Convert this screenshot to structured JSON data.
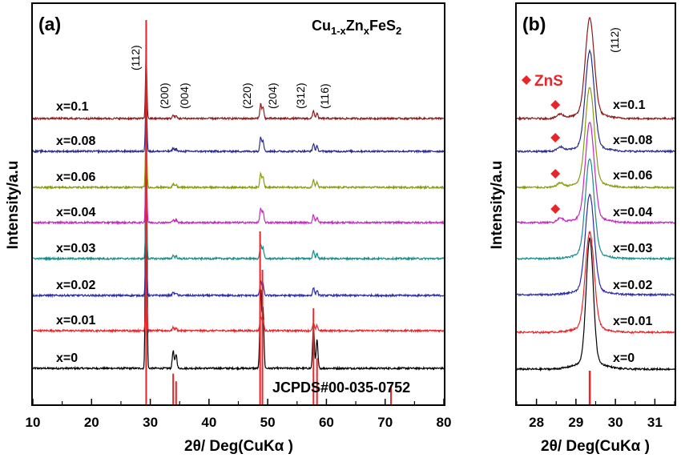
{
  "chart_data": [
    {
      "type": "line",
      "panel_label": "(a)",
      "formula": {
        "base": "Cu",
        "sub1": "1-x",
        "mid": "Zn",
        "sub2": "x",
        "tail": "FeS",
        "sub3": "2"
      },
      "xlabel": "2θ/ Deg(CuKα )",
      "ylabel": "Intensity/a.u",
      "xlim": [
        10,
        80
      ],
      "xticks": [
        "10",
        "20",
        "30",
        "40",
        "50",
        "60",
        "70",
        "80"
      ],
      "series": [
        {
          "name": "x=0",
          "color": "#000000"
        },
        {
          "name": "x=0.01",
          "color": "#e8262a"
        },
        {
          "name": "x=0.02",
          "color": "#2c2ca8"
        },
        {
          "name": "x=0.03",
          "color": "#1a8c8c"
        },
        {
          "name": "x=0.04",
          "color": "#c02cc0"
        },
        {
          "name": "x=0.06",
          "color": "#8a9a10"
        },
        {
          "name": "x=0.08",
          "color": "#2c2c8c"
        },
        {
          "name": "x=0.1",
          "color": "#8c1a1a"
        }
      ],
      "peaks": [
        {
          "label": "(112)",
          "x": 29.3,
          "height": 1.0,
          "width": 0.12
        },
        {
          "label": "(200)",
          "x": 33.9,
          "height": 0.05,
          "width": 0.15
        },
        {
          "label": "(004)",
          "x": 34.4,
          "height": 0.04,
          "width": 0.15
        },
        {
          "label": "(220)",
          "x": 48.8,
          "height": 0.22,
          "width": 0.15
        },
        {
          "label": "(204)",
          "x": 49.2,
          "height": 0.17,
          "width": 0.15
        },
        {
          "label": "(312)",
          "x": 57.8,
          "height": 0.12,
          "width": 0.15
        },
        {
          "label": "(116)",
          "x": 58.4,
          "height": 0.08,
          "width": 0.15
        }
      ],
      "reference": {
        "label": "JCPDS#00-035-0752",
        "color": "#e8262a",
        "lines": [
          {
            "x": 29.3,
            "rel": 1.0
          },
          {
            "x": 33.9,
            "rel": 0.08
          },
          {
            "x": 34.4,
            "rel": 0.06
          },
          {
            "x": 48.7,
            "rel": 0.45
          },
          {
            "x": 49.1,
            "rel": 0.35
          },
          {
            "x": 57.8,
            "rel": 0.25
          },
          {
            "x": 58.4,
            "rel": 0.12
          },
          {
            "x": 71.0,
            "rel": 0.05
          }
        ]
      }
    },
    {
      "type": "line",
      "panel_label": "(b)",
      "xlabel": "2θ/ Deg(CuKα )",
      "ylabel": "Intensity/a.u",
      "xlim": [
        27.5,
        31.5
      ],
      "xticks": [
        "28",
        "29",
        "30",
        "31"
      ],
      "peak_label": "(112)",
      "peak_x": 29.35,
      "impurity_label": "ZnS",
      "impurity_color": "#e8262a",
      "impurity_x": 28.6,
      "impurity_series": [
        "x=0.04",
        "x=0.06",
        "x=0.08",
        "x=0.1"
      ],
      "series": [
        {
          "name": "x=0",
          "color": "#000000"
        },
        {
          "name": "x=0.01",
          "color": "#e8262a"
        },
        {
          "name": "x=0.02",
          "color": "#2c2ca8"
        },
        {
          "name": "x=0.03",
          "color": "#1a8c8c"
        },
        {
          "name": "x=0.04",
          "color": "#c02cc0"
        },
        {
          "name": "x=0.06",
          "color": "#8a9a10"
        },
        {
          "name": "x=0.08",
          "color": "#2c2c8c"
        },
        {
          "name": "x=0.1",
          "color": "#8c1a1a"
        }
      ],
      "reference": {
        "color": "#e8262a",
        "lines": [
          {
            "x": 29.35,
            "rel": 1.0
          }
        ]
      }
    }
  ]
}
